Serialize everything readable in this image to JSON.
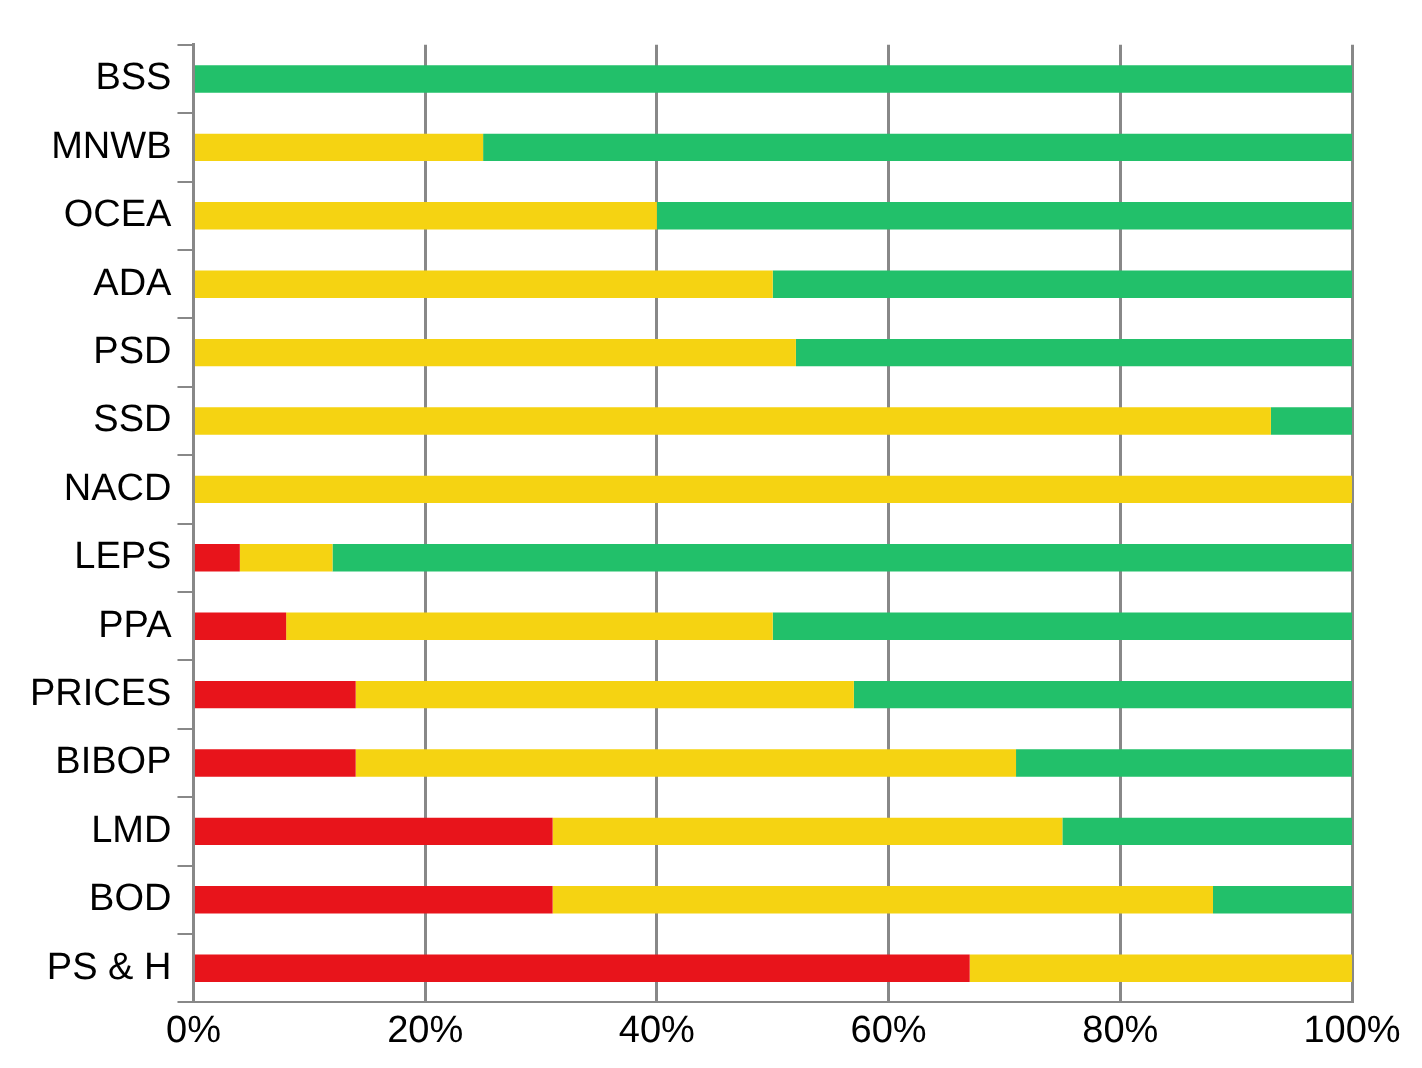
{
  "chart_data": {
    "type": "bar",
    "orientation": "horizontal",
    "stacked": true,
    "categories": [
      "BSS",
      "MNWB",
      "OCEA",
      "ADA",
      "PSD",
      "SSD",
      "NACD",
      "LEPS",
      "PPA",
      "PRICES",
      "BIBOP",
      "LMD",
      "BOD",
      "PS & H"
    ],
    "series": [
      {
        "color": "#e8141b",
        "values": [
          0,
          0,
          0,
          0,
          0,
          0,
          0,
          4,
          8,
          14,
          14,
          31,
          31,
          67
        ]
      },
      {
        "color": "#f5d312",
        "values": [
          0,
          25,
          40,
          50,
          52,
          93,
          100,
          8,
          42,
          43,
          57,
          44,
          57,
          33
        ]
      },
      {
        "color": "#22c06a",
        "values": [
          100,
          75,
          60,
          50,
          48,
          7,
          0,
          88,
          50,
          43,
          29,
          25,
          12,
          0
        ]
      }
    ],
    "xlim": [
      0,
      100
    ],
    "xticks": [
      {
        "value": 0,
        "label": "0%"
      },
      {
        "value": 20,
        "label": "20%"
      },
      {
        "value": 40,
        "label": "40%"
      },
      {
        "value": 60,
        "label": "60%"
      },
      {
        "value": 80,
        "label": "80%"
      },
      {
        "value": 100,
        "label": "100%"
      }
    ],
    "grid": "x",
    "legend": false
  }
}
